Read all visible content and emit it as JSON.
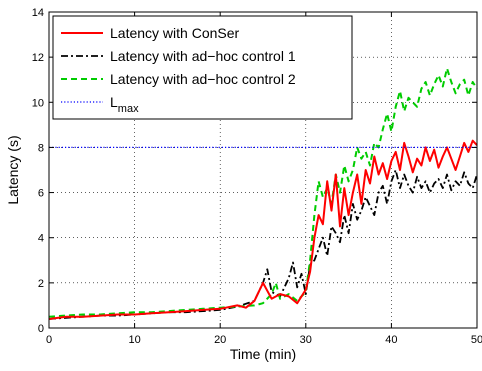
{
  "chart_data": {
    "type": "line",
    "xlabel": "Time (min)",
    "ylabel": "Latency (s)",
    "xlim": [
      0,
      50
    ],
    "ylim": [
      0,
      14
    ],
    "xticks": [
      0,
      10,
      20,
      30,
      40,
      50
    ],
    "yticks": [
      0,
      2,
      4,
      6,
      8,
      10,
      12,
      14
    ],
    "grid": true,
    "legend_position": "top-left",
    "series": [
      {
        "name": "Latency with ConSer",
        "color": "#ff0000",
        "style": "solid",
        "x": [
          0,
          2,
          4,
          6,
          8,
          10,
          12,
          14,
          16,
          18,
          20,
          22,
          23,
          24,
          25,
          26,
          27,
          28,
          29,
          30,
          30.5,
          31,
          31.5,
          32,
          32.5,
          33,
          33.5,
          34,
          34.5,
          35,
          35.5,
          36,
          36.5,
          37,
          37.5,
          38,
          38.5,
          39,
          39.5,
          40,
          40.5,
          41,
          41.5,
          42,
          42.5,
          43,
          43.5,
          44,
          44.5,
          45,
          45.5,
          46,
          46.5,
          47,
          47.5,
          48,
          48.5,
          49,
          49.5,
          50
        ],
        "y": [
          0.4,
          0.5,
          0.5,
          0.55,
          0.6,
          0.6,
          0.65,
          0.7,
          0.75,
          0.8,
          0.85,
          1.0,
          0.9,
          1.2,
          2.0,
          1.3,
          1.5,
          1.4,
          1.1,
          1.7,
          2.5,
          4.0,
          5.0,
          4.6,
          6.5,
          5.2,
          6.8,
          4.5,
          6.2,
          5.0,
          6.0,
          6.8,
          5.5,
          7.0,
          6.4,
          7.6,
          6.8,
          7.3,
          6.6,
          7.4,
          7.8,
          7.0,
          8.2,
          7.6,
          6.9,
          7.5,
          7.2,
          8.0,
          7.4,
          7.9,
          7.1,
          7.6,
          8.0,
          7.5,
          7.0,
          7.6,
          8.2,
          7.8,
          8.3,
          8.1
        ]
      },
      {
        "name": "Latency with ad−hoc control 1",
        "color": "#000000",
        "style": "dashdot",
        "x": [
          0,
          2,
          4,
          6,
          8,
          10,
          12,
          14,
          16,
          18,
          20,
          22,
          24,
          25,
          25.5,
          26,
          27,
          28,
          28.5,
          29,
          29.5,
          30,
          30.5,
          31,
          31.5,
          32,
          32.5,
          33,
          33.5,
          34,
          34.5,
          35,
          35.5,
          36,
          36.5,
          37,
          37.5,
          38,
          38.5,
          39,
          39.5,
          40,
          40.5,
          41,
          41.5,
          42,
          42.5,
          43,
          43.5,
          44,
          44.5,
          45,
          45.5,
          46,
          46.5,
          47,
          47.5,
          48,
          48.5,
          49,
          49.5,
          50
        ],
        "y": [
          0.4,
          0.45,
          0.5,
          0.55,
          0.55,
          0.6,
          0.65,
          0.7,
          0.7,
          0.75,
          0.8,
          0.95,
          1.2,
          2.0,
          2.6,
          1.6,
          1.4,
          2.2,
          2.9,
          1.8,
          2.4,
          1.5,
          2.8,
          3.0,
          3.5,
          4.0,
          3.2,
          4.5,
          4.2,
          3.8,
          5.0,
          4.2,
          5.5,
          4.8,
          5.2,
          5.8,
          5.4,
          5.0,
          6.0,
          6.3,
          5.5,
          6.5,
          7.0,
          6.2,
          6.8,
          6.3,
          6.0,
          6.7,
          6.2,
          6.5,
          6.0,
          6.4,
          6.6,
          6.2,
          6.8,
          6.1,
          6.5,
          6.3,
          6.9,
          6.4,
          6.2,
          6.8
        ]
      },
      {
        "name": "Latency with ad−hoc control 2",
        "color": "#00cc00",
        "style": "dashed",
        "x": [
          0,
          2,
          4,
          6,
          8,
          10,
          12,
          14,
          16,
          18,
          20,
          22,
          24,
          25,
          26,
          26.5,
          27,
          28,
          29,
          30,
          30.5,
          31,
          31.5,
          32,
          32.5,
          33,
          33.5,
          34,
          34.5,
          35,
          35.5,
          36,
          36.5,
          37,
          37.5,
          38,
          38.5,
          39,
          39.5,
          40,
          40.5,
          41,
          41.5,
          42,
          42.5,
          43,
          43.5,
          44,
          44.5,
          45,
          45.5,
          46,
          46.5,
          47,
          47.5,
          48,
          48.5,
          49,
          49.5,
          50
        ],
        "y": [
          0.5,
          0.55,
          0.6,
          0.6,
          0.65,
          0.7,
          0.7,
          0.75,
          0.8,
          0.85,
          0.9,
          0.95,
          1.0,
          1.1,
          1.5,
          2.0,
          1.3,
          1.5,
          1.2,
          1.6,
          3.0,
          5.0,
          6.5,
          5.8,
          6.2,
          5.5,
          6.8,
          6.0,
          7.2,
          6.5,
          7.0,
          8.0,
          7.5,
          7.8,
          7.2,
          8.2,
          8.0,
          8.8,
          9.5,
          8.7,
          9.8,
          10.5,
          9.6,
          10.2,
          10.0,
          9.8,
          10.6,
          10.9,
          10.3,
          10.8,
          11.2,
          10.7,
          11.5,
          10.9,
          10.4,
          10.8,
          11.0,
          10.3,
          10.9,
          10.6
        ]
      },
      {
        "name": "L",
        "name_subscript": "max",
        "color": "#0000ff",
        "style": "dotted",
        "x": [
          0,
          50
        ],
        "y": [
          8,
          8
        ]
      }
    ]
  }
}
